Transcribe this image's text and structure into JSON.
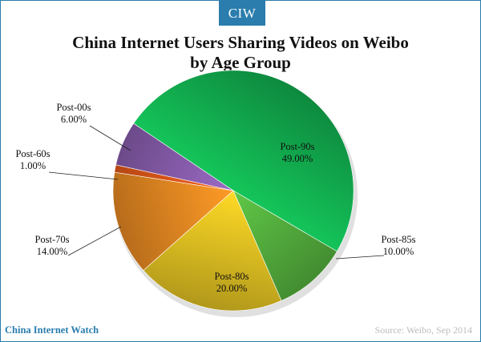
{
  "brand": {
    "logo_text": "CIW",
    "name": "China Internet Watch"
  },
  "source": "Source: Weibo, Sep 2014",
  "chart_data": {
    "type": "pie",
    "title_lines": [
      "China Internet Users Sharing Videos on Weibo",
      "by Age Group"
    ],
    "slices": [
      {
        "label": "Post-90s",
        "value": 49.0,
        "display": "49.00%",
        "color": "#12b050"
      },
      {
        "label": "Post-85s",
        "value": 10.0,
        "display": "10.00%",
        "color": "#56b33f"
      },
      {
        "label": "Post-80s",
        "value": 20.0,
        "display": "20.00%",
        "color": "#e3c322"
      },
      {
        "label": "Post-70s",
        "value": 14.0,
        "display": "14.00%",
        "color": "#ea8a22"
      },
      {
        "label": "Post-60s",
        "value": 1.0,
        "display": "1.00%",
        "color": "#e85a1a"
      },
      {
        "label": "Post-00s",
        "value": 6.0,
        "display": "6.00%",
        "color": "#8a5fb0"
      }
    ]
  }
}
